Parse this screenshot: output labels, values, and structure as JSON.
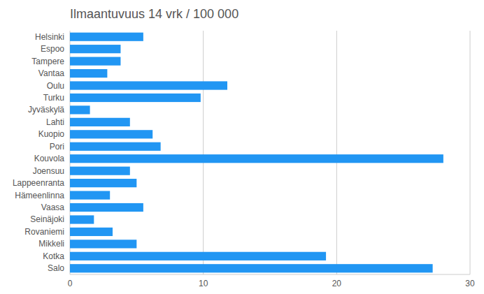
{
  "chart_data": {
    "type": "bar",
    "orientation": "horizontal",
    "title": "Ilmaantuvuus 14 vrk / 100 000",
    "categories": [
      "Helsinki",
      "Espoo",
      "Tampere",
      "Vantaa",
      "Oulu",
      "Turku",
      "Jyväskylä",
      "Lahti",
      "Kuopio",
      "Pori",
      "Kouvola",
      "Joensuu",
      "Lappeenranta",
      "Hämeenlinna",
      "Vaasa",
      "Seinäjoki",
      "Rovaniemi",
      "Mikkeli",
      "Kotka",
      "Salo"
    ],
    "values": [
      5.5,
      3.8,
      3.8,
      2.8,
      11.8,
      9.8,
      1.5,
      4.5,
      6.2,
      6.8,
      28.0,
      4.5,
      5.0,
      3.0,
      5.5,
      1.8,
      3.2,
      5.0,
      19.2,
      27.2
    ],
    "color": "#2196f3",
    "xlim": [
      0,
      30
    ],
    "xticks": [
      0,
      10,
      20,
      30
    ],
    "grid": true
  }
}
